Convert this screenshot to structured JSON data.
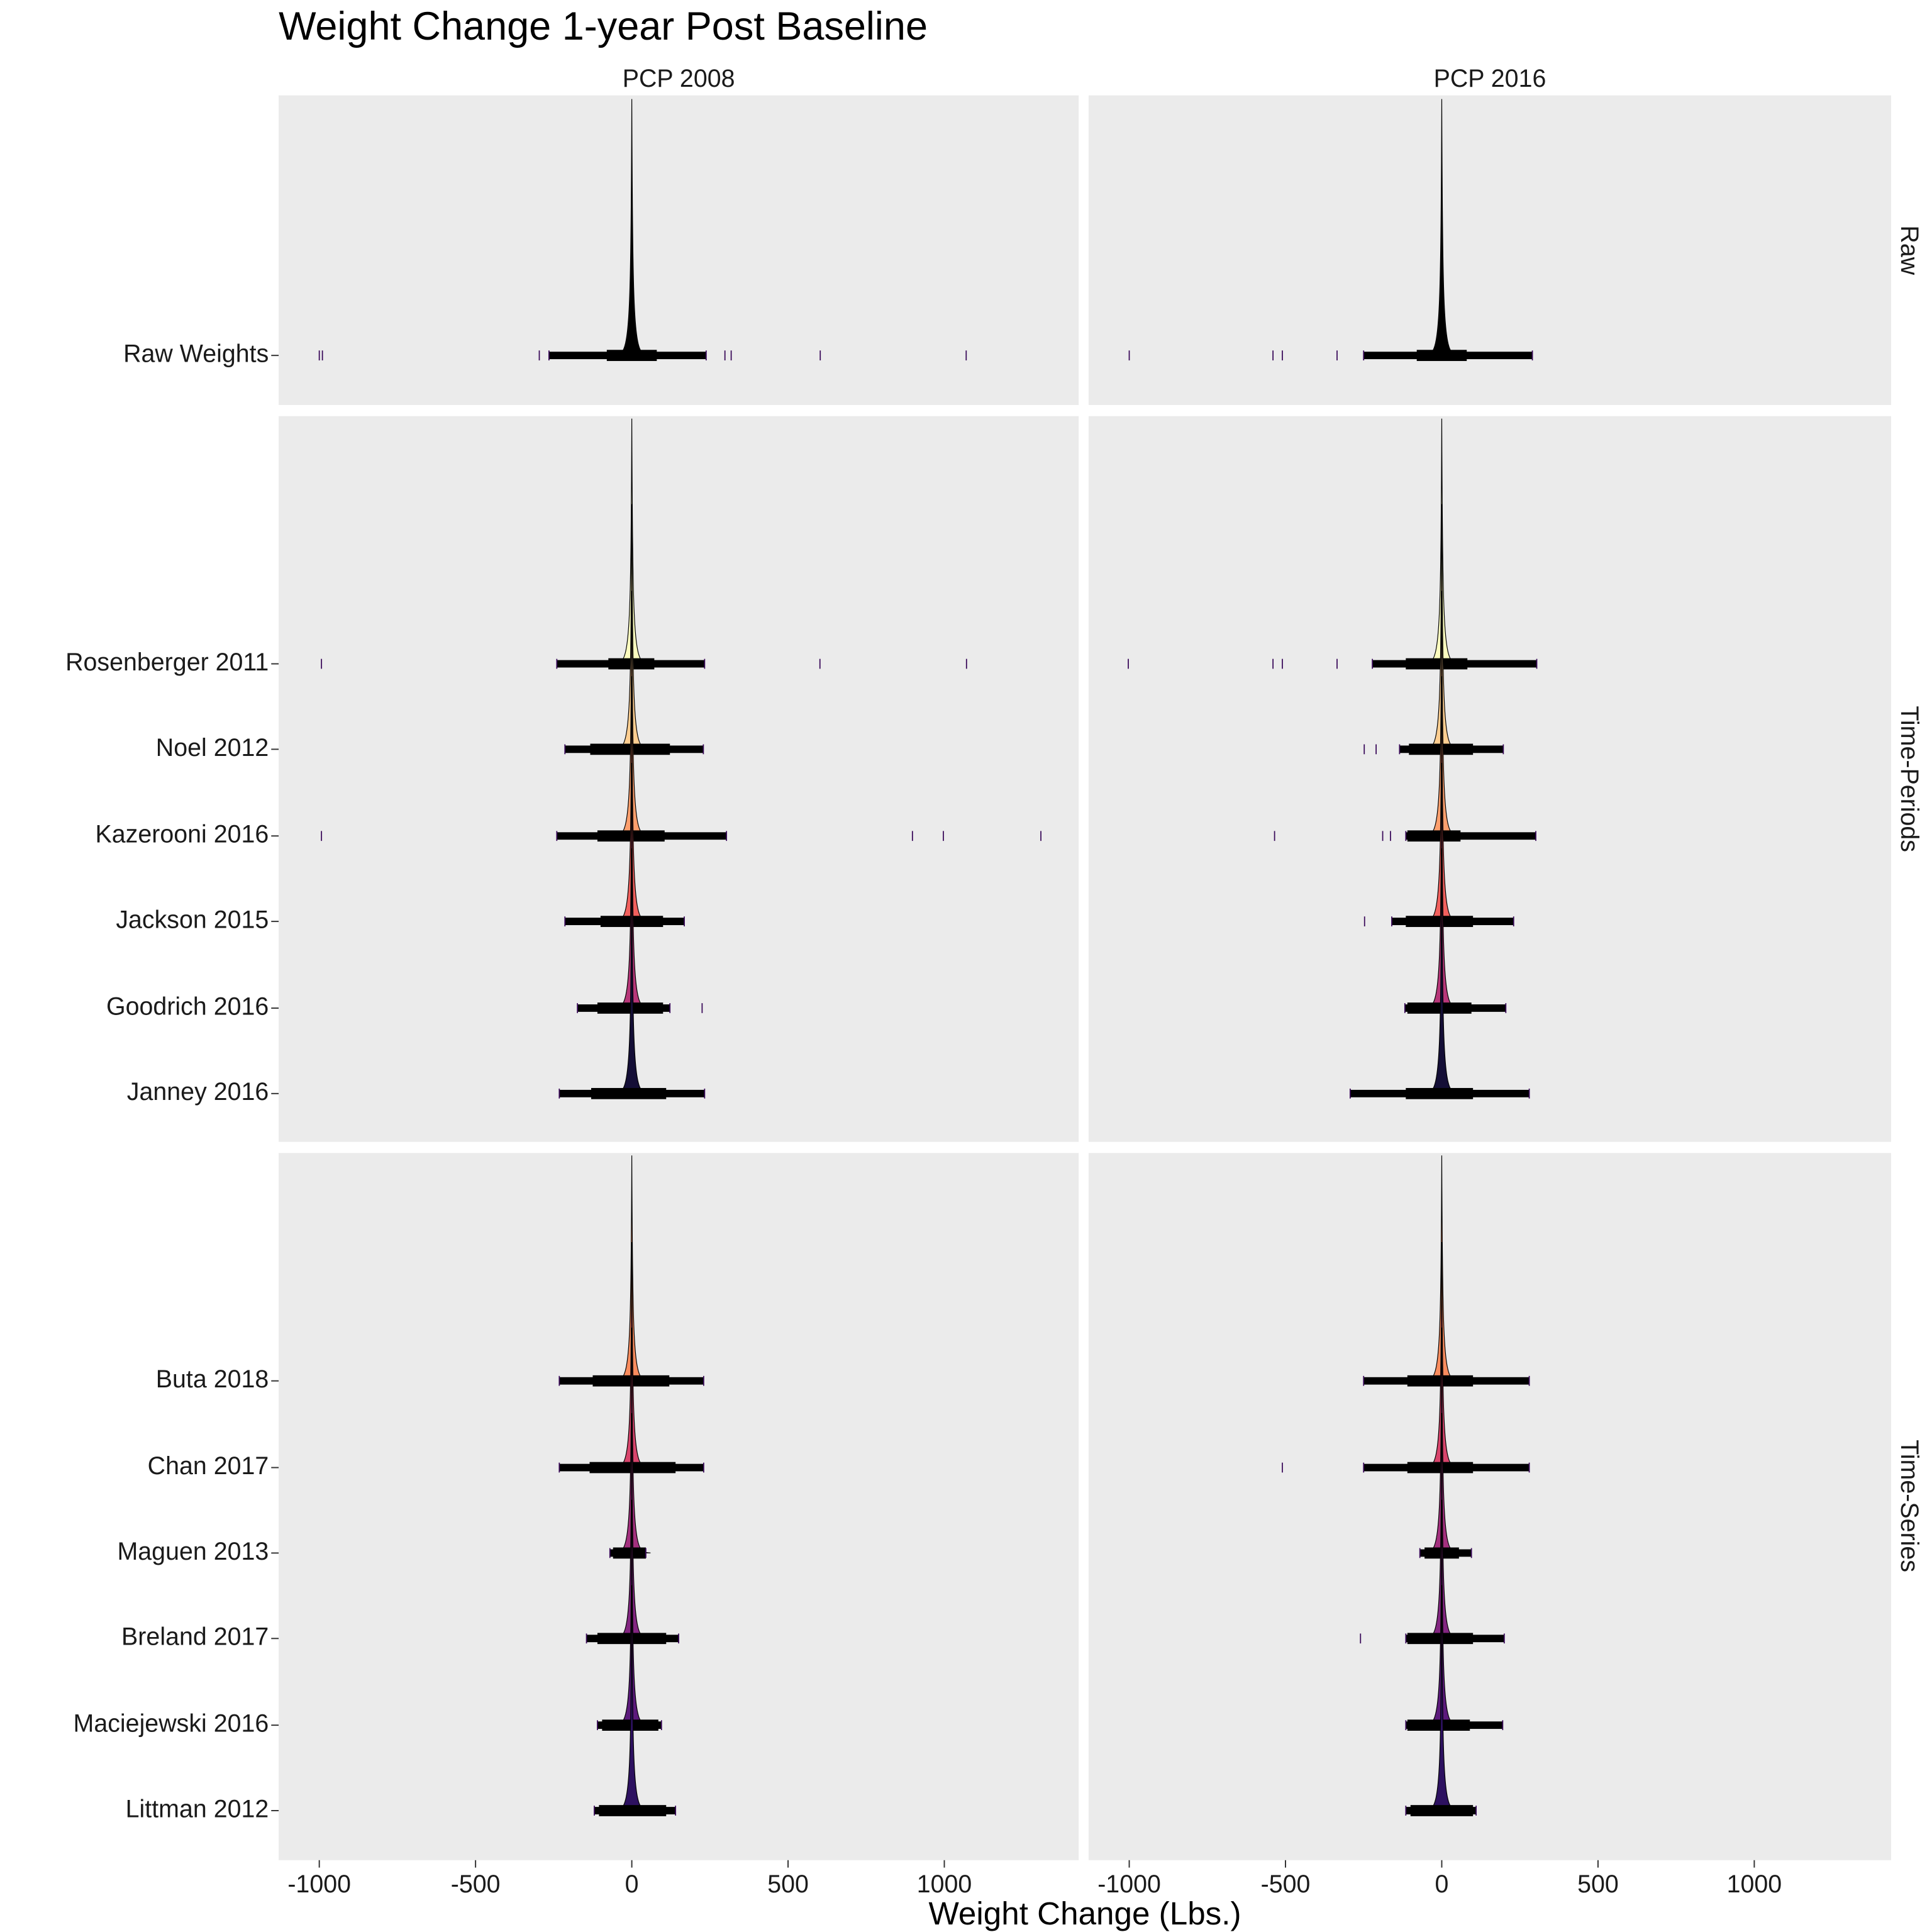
{
  "chart_data": {
    "type": "ridgeline",
    "title": "Weight Change 1-year Post Baseline",
    "xlabel": "Weight Change (Lbs.)",
    "ylabel": "",
    "xlim": [
      -1130,
      1430
    ],
    "x_ticks": [
      -1000,
      -500,
      0,
      500,
      1000
    ],
    "x_tick_labels": [
      "-1000",
      "-500",
      "0",
      "500",
      "1000"
    ],
    "grid": false,
    "columns": [
      "PCP 2008",
      "PCP 2016"
    ],
    "rows": [
      {
        "label": "Raw",
        "groups": [
          {
            "name": "Raw Weights",
            "color": "#000000",
            "panels": [
              {
                "rug": [
                  -265,
                  238
                ],
                "dense": [
                  -80,
                  80
                ],
                "outliers": [
                  -1000,
                  -990,
                  -296,
                  298,
                  318,
                  603,
                  1070
                ]
              },
              {
                "rug": [
                  -250,
                  290
                ],
                "dense": [
                  -80,
                  80
                ],
                "outliers": [
                  -1000,
                  -540,
                  -510,
                  -335
                ]
              }
            ]
          }
        ]
      },
      {
        "label": "Time-Periods",
        "groups": [
          {
            "name": "Rosenberger 2011",
            "color": "#FCFDBF",
            "panels": [
              {
                "rug": [
                  -240,
                  233
                ],
                "dense": [
                  -75,
                  72
                ],
                "outliers": [
                  -993,
                  602,
                  1071
                ]
              },
              {
                "rug": [
                  -222,
                  304
                ],
                "dense": [
                  -115,
                  82
                ],
                "outliers": [
                  -1003,
                  -540,
                  -510,
                  -335
                ]
              }
            ]
          },
          {
            "name": "Noel 2012",
            "color": "#FECE91",
            "panels": [
              {
                "rug": [
                  -214,
                  229
                ],
                "dense": [
                  -133,
                  122
                ],
                "outliers": []
              },
              {
                "rug": [
                  -135,
                  197
                ],
                "dense": [
                  -105,
                  100
                ],
                "outliers": [
                  -248,
                  -210
                ]
              }
            ]
          },
          {
            "name": "Kazerooni 2016",
            "color": "#FE9F6D",
            "panels": [
              {
                "rug": [
                  -240,
                  303
                ],
                "dense": [
                  -110,
                  105
                ],
                "outliers": [
                  -993,
                  898,
                  997,
                  1309
                ]
              },
              {
                "rug": [
                  -115,
                  301
                ],
                "dense": [
                  -110,
                  60
                ],
                "outliers": [
                  -535,
                  -189,
                  -164
                ]
              }
            ]
          },
          {
            "name": "Jackson 2015",
            "color": "#F1605D",
            "panels": [
              {
                "rug": [
                  -214,
                  168
                ],
                "dense": [
                  -100,
                  100
                ],
                "outliers": []
              },
              {
                "rug": [
                  -160,
                  230
                ],
                "dense": [
                  -115,
                  100
                ],
                "outliers": [
                  -247
                ]
              }
            ]
          },
          {
            "name": "Goodrich 2016",
            "color": "#B73779",
            "panels": [
              {
                "rug": [
                  -174,
                  122
                ],
                "dense": [
                  -110,
                  100
                ],
                "outliers": [
                  225
                ]
              },
              {
                "rug": [
                  -118,
                  205
                ],
                "dense": [
                  -110,
                  95
                ],
                "outliers": []
              }
            ]
          },
          {
            "name": "Janney 2016",
            "color": "#140E36",
            "panels": [
              {
                "rug": [
                  -232,
                  233
                ],
                "dense": [
                  -130,
                  110
                ],
                "outliers": []
              },
              {
                "rug": [
                  -293,
                  280
                ],
                "dense": [
                  -115,
                  100
                ],
                "outliers": []
              }
            ]
          }
        ]
      },
      {
        "label": "Time-Series",
        "groups": [
          {
            "name": "Buta 2018",
            "color": "#F98C5E",
            "panels": [
              {
                "rug": [
                  -232,
                  230
                ],
                "dense": [
                  -125,
                  120
                ],
                "outliers": []
              },
              {
                "rug": [
                  -250,
                  280
                ],
                "dense": [
                  -110,
                  100
                ],
                "outliers": []
              }
            ]
          },
          {
            "name": "Chan 2017",
            "color": "#D8456C",
            "panels": [
              {
                "rug": [
                  -232,
                  230
                ],
                "dense": [
                  -135,
                  140
                ],
                "outliers": []
              },
              {
                "rug": [
                  -250,
                  280
                ],
                "dense": [
                  -110,
                  100
                ],
                "outliers": [
                  -510
                ]
              }
            ]
          },
          {
            "name": "Maguen 2013",
            "color": "#A3307E",
            "panels": [
              {
                "rug": [
                  -70,
                  45
                ],
                "dense": [
                  -60,
                  45
                ],
                "outliers": []
              },
              {
                "rug": [
                  -70,
                  95
                ],
                "dense": [
                  -55,
                  55
                ],
                "outliers": []
              }
            ]
          },
          {
            "name": "Breland 2017",
            "color": "#832681",
            "panels": [
              {
                "rug": [
                  -145,
                  150
                ],
                "dense": [
                  -110,
                  110
                ],
                "outliers": []
              },
              {
                "rug": [
                  -115,
                  200
                ],
                "dense": [
                  -110,
                  100
                ],
                "outliers": [
                  -260
                ]
              }
            ]
          },
          {
            "name": "Maciejewski 2016",
            "color": "#5C1A7C",
            "panels": [
              {
                "rug": [
                  -110,
                  95
                ],
                "dense": [
                  -95,
                  85
                ],
                "outliers": []
              },
              {
                "rug": [
                  -115,
                  195
                ],
                "dense": [
                  -110,
                  90
                ],
                "outliers": []
              }
            ]
          },
          {
            "name": "Littman 2012",
            "color": "#2D1160",
            "panels": [
              {
                "rug": [
                  -120,
                  140
                ],
                "dense": [
                  -105,
                  110
                ],
                "outliers": []
              },
              {
                "rug": [
                  -115,
                  110
                ],
                "dense": [
                  -100,
                  100
                ],
                "outliers": []
              }
            ]
          }
        ]
      }
    ]
  }
}
